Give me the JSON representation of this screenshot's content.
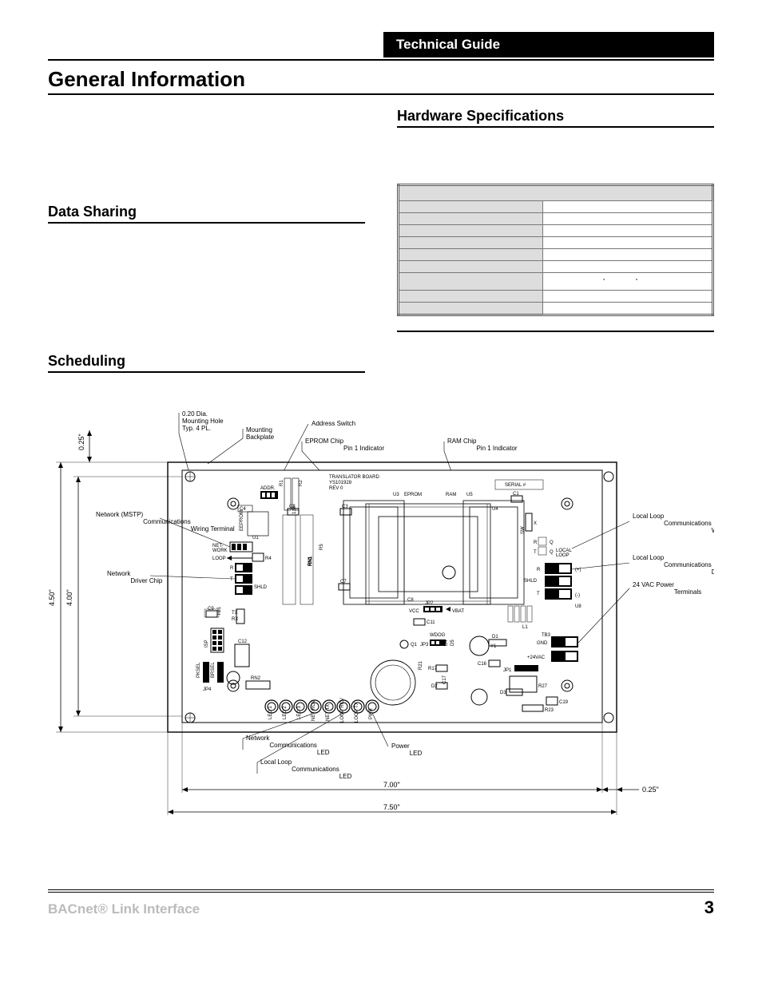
{
  "header": {
    "band": "Technical Guide"
  },
  "title": "General Information",
  "left": {
    "section1": "Data Sharing",
    "section2": "Scheduling"
  },
  "right": {
    "section": "Hardware Specifications",
    "table": {
      "rows": [
        [
          "",
          ""
        ],
        [
          "",
          ""
        ],
        [
          "",
          ""
        ],
        [
          "",
          ""
        ],
        [
          "",
          ""
        ],
        [
          "",
          ""
        ],
        [
          "",
          "°                 °"
        ],
        [
          "",
          ""
        ],
        [
          "",
          ""
        ]
      ]
    }
  },
  "diagram": {
    "outer_w": "7.50\"",
    "inner_w": "7.00\"",
    "outer_h": "4.50\"",
    "inner_h": "4.00\"",
    "top_off": "0.25\"",
    "right_off": "0.25\"",
    "labels": {
      "mount_hole": "0.20 Dia.\nMounting Hole\nTyp. 4 PL.",
      "backplate": "Mounting\nBackplate",
      "addr_sw": "Address Switch",
      "eprom": "EPROM Chip\nPin 1 Indicator",
      "ram": "RAM Chip\nPin 1 Indicator",
      "mstp": "Network (MSTP)\nCommunications\nWiring Terminal",
      "net_driver": "Network\nDriver Chip",
      "net_led": "Network\nCommunications\nLED",
      "loop_led": "Local Loop\nCommunications\nLED",
      "pwr_led": "Power\nLED",
      "loop_term": "Local Loop\nCommunications\nWiring Terminal",
      "loop_chip": "Local Loop\nCommunications\nDriver Chip",
      "vac": "24 VAC Power\nTerminals",
      "board_title": "TRANSLATOR BOARD",
      "board_id": "YS101928",
      "board_rev": "REV 0",
      "serial": "SERIAL #",
      "addr": "ADDR.",
      "eeprom": "EEPROM",
      "network": "NET-\nWORK",
      "loop": "LOOP",
      "shld": "SHLD",
      "local_loop": "LOCAL\nLOOP",
      "vcc": "VCC",
      "vbat": "VBAT",
      "wdog": "WDOG",
      "gnd": "GND",
      "vac24": "+24VAC",
      "eprom_txt": "EPROM",
      "ram_txt": "RAM",
      "leds": [
        "LED 1",
        "LED 2",
        "LED 3",
        "NET RCV",
        "NET TX",
        "LOOP RCV",
        "LOOP TX",
        "PWR"
      ],
      "u1": "U1",
      "u3": "U3",
      "u4": "U4",
      "u5": "U5",
      "u8": "U8",
      "rn1": "RN1",
      "rn2": "RN2",
      "r": "R",
      "t": "T",
      "plus": "(+)",
      "minus": "(-)",
      "c1": "C1",
      "c2": "C2",
      "c3": "C3",
      "c4": "C4",
      "c5": "C5",
      "c7": "C7",
      "c8": "C8",
      "c9": "C9",
      "c11": "C11",
      "c12": "C12",
      "c14": "C14",
      "c16": "C16",
      "c17": "C17",
      "c19": "C19",
      "r4": "R4",
      "r17": "R17",
      "r21": "R21",
      "r23": "R23",
      "r25": "R25",
      "r26": "R26",
      "r27": "R27",
      "d1": "D1",
      "d2": "D2",
      "d3": "D3",
      "d4": "D4",
      "d5": "D5",
      "q1": "Q1",
      "l1": "L1",
      "y1": "Y1",
      "jp1": "JP1",
      "jp2": "JP2",
      "jp3": "JP3",
      "jp4": "JP4",
      "tb1": "TB1",
      "tb3": "TB3",
      "tx": "TX",
      "rx": "RX",
      "isp": "ISP",
      "pksel": "PKSEL",
      "brsel": "BRSEL",
      "ld1": "1.5F"
    }
  },
  "footer": {
    "title": "BACnet® Link Interface",
    "page": "3"
  }
}
